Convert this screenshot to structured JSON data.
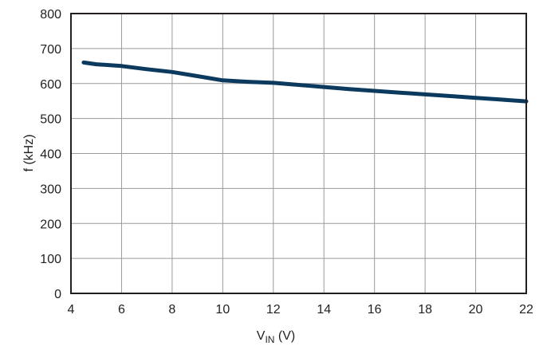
{
  "chart_data": {
    "type": "line",
    "title": "",
    "xlabel": {
      "main": "V",
      "sub": "IN",
      "unit": " (V)"
    },
    "ylabel": "f (kHz)",
    "xlim": [
      4,
      22
    ],
    "ylim": [
      0,
      800
    ],
    "xticks": [
      4,
      6,
      8,
      10,
      12,
      14,
      16,
      18,
      20,
      22
    ],
    "yticks": [
      0,
      100,
      200,
      300,
      400,
      500,
      600,
      700,
      800
    ],
    "grid": true,
    "legend": "none",
    "series": [
      {
        "color": "#0b3a5e",
        "x": [
          4.5,
          5.0,
          6.0,
          7.0,
          8.0,
          9.0,
          10.0,
          11.0,
          12.0,
          13.0,
          14.0,
          15.0,
          16.0,
          17.0,
          18.0,
          19.0,
          20.0,
          21.0,
          22.0
        ],
        "y": [
          660,
          655,
          650,
          641,
          633,
          621,
          609,
          605,
          602,
          596,
          590,
          584,
          579,
          574,
          569,
          564,
          559,
          554,
          549
        ]
      }
    ]
  }
}
